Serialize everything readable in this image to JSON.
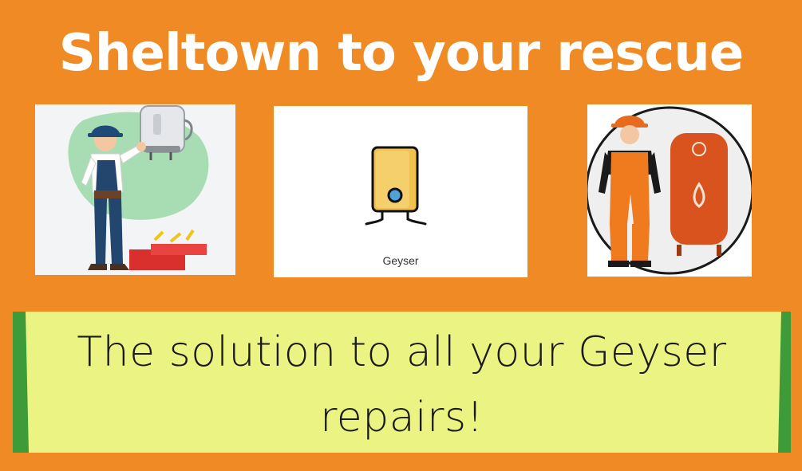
{
  "headline": "Sheltown to your rescue",
  "panels": {
    "plumber_illustration": {
      "icon": "plumber-repairing-geyser"
    },
    "geyser_icon": {
      "icon": "geyser-icon",
      "caption": "Geyser"
    },
    "technician_illustration": {
      "icon": "technician-with-geyser"
    }
  },
  "banner": {
    "tagline": "The solution to all your Geyser repairs!"
  },
  "colors": {
    "background": "#F08A24",
    "banner": "#EBF383",
    "banner_edge": "#3E9B3A",
    "headline_text": "#FFFFFF"
  }
}
